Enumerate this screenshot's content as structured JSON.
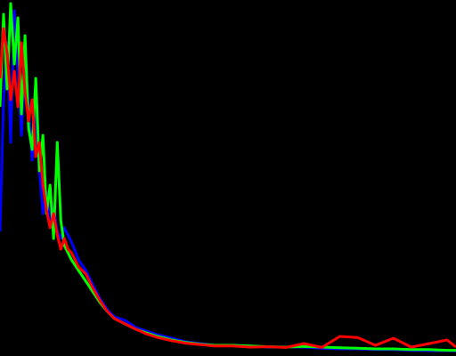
{
  "chart_data": {
    "type": "line",
    "title": "",
    "xlabel": "",
    "ylabel": "",
    "background": "#000000",
    "grid": false,
    "legend": "none",
    "xlim": [
      0,
      255
    ],
    "ylim": [
      0,
      100
    ],
    "x": [
      0,
      2,
      4,
      6,
      8,
      10,
      12,
      14,
      16,
      18,
      20,
      22,
      24,
      26,
      28,
      30,
      32,
      34,
      36,
      38,
      40,
      44,
      48,
      52,
      56,
      60,
      64,
      70,
      76,
      82,
      88,
      96,
      104,
      112,
      120,
      130,
      140,
      150,
      160,
      170,
      180,
      190,
      200,
      210,
      220,
      230,
      240,
      250,
      255
    ],
    "series": [
      {
        "name": "",
        "color": "#0000ff",
        "values": [
          35,
          72,
          88,
          60,
          97,
          80,
          62,
          85,
          70,
          55,
          68,
          52,
          40,
          46,
          38,
          42,
          35,
          33,
          36,
          34,
          32,
          27,
          24,
          20,
          16,
          13,
          11,
          10,
          8,
          7,
          6,
          5,
          4,
          3.5,
          3,
          3,
          2.8,
          2.5,
          2.5,
          2.5,
          2.2,
          2,
          2,
          1.8,
          1.8,
          1.6,
          1.5,
          1.5,
          1.4
        ]
      },
      {
        "name": "",
        "color": "#00ff00",
        "values": [
          70,
          96,
          75,
          99,
          82,
          95,
          68,
          90,
          64,
          58,
          78,
          52,
          62,
          40,
          48,
          33,
          60,
          38,
          31,
          29,
          27,
          24,
          21,
          18,
          15,
          12.5,
          10.5,
          9,
          7.5,
          6.5,
          5.5,
          4.5,
          3.8,
          3.3,
          3,
          3,
          2.8,
          2.6,
          2.5,
          2.7,
          2.5,
          2.3,
          2.2,
          2,
          2,
          1.8,
          1.8,
          1.6,
          1.6
        ]
      },
      {
        "name": "",
        "color": "#ff0000",
        "values": [
          78,
          92,
          85,
          72,
          80,
          70,
          88,
          74,
          66,
          72,
          56,
          60,
          48,
          41,
          36,
          40,
          34,
          30,
          33,
          30,
          29,
          25,
          23,
          19,
          15.5,
          12.5,
          10.5,
          9,
          7.5,
          6.2,
          5.2,
          4.3,
          3.6,
          3.2,
          2.8,
          2.8,
          2.5,
          2.6,
          2.4,
          3.5,
          2.4,
          5.5,
          5.2,
          3,
          5,
          2.5,
          3.5,
          4.5,
          2.5
        ]
      }
    ]
  }
}
